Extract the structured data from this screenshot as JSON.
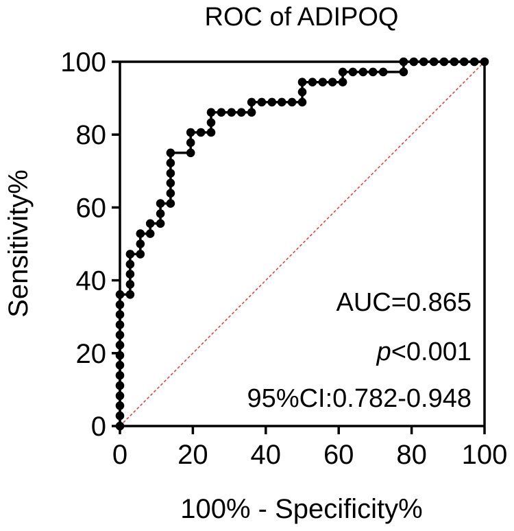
{
  "chart_data": {
    "type": "line",
    "title": "ROC of ADIPOQ",
    "xlabel": "100% - Specificity%",
    "ylabel": "Sensitivity%",
    "xlim": [
      0,
      100
    ],
    "ylim": [
      0,
      100
    ],
    "xticks": [
      "0",
      "20",
      "40",
      "60",
      "80",
      "100"
    ],
    "yticks": [
      "0",
      "20",
      "40",
      "60",
      "80",
      "100"
    ],
    "grid": false,
    "legend": "none",
    "colors": {
      "curve": "#000000",
      "reference": "#e0443e"
    },
    "annotations": {
      "auc": "AUC=0.865",
      "p_italic": "p",
      "p_rest": "<0.001",
      "ci": "95%CI:0.782-0.948"
    },
    "series": [
      {
        "kind": "roc-curve",
        "points": [
          [
            0,
            0
          ],
          [
            0,
            2.8
          ],
          [
            0,
            5.6
          ],
          [
            0,
            8.3
          ],
          [
            0,
            11.1
          ],
          [
            0,
            13.9
          ],
          [
            0,
            16.7
          ],
          [
            0,
            19.4
          ],
          [
            0,
            22.2
          ],
          [
            0,
            25
          ],
          [
            0,
            27.8
          ],
          [
            0,
            30.6
          ],
          [
            0,
            33.3
          ],
          [
            0,
            36.1
          ],
          [
            2.8,
            36.1
          ],
          [
            2.8,
            38.9
          ],
          [
            2.8,
            41.7
          ],
          [
            2.8,
            44.4
          ],
          [
            2.8,
            47.2
          ],
          [
            5.6,
            47.2
          ],
          [
            5.6,
            50
          ],
          [
            5.6,
            52.8
          ],
          [
            8.3,
            52.8
          ],
          [
            8.3,
            55.6
          ],
          [
            11.1,
            55.6
          ],
          [
            11.1,
            58.3
          ],
          [
            11.1,
            61.1
          ],
          [
            13.9,
            61.1
          ],
          [
            13.9,
            63.9
          ],
          [
            13.9,
            66.7
          ],
          [
            13.9,
            69.4
          ],
          [
            13.9,
            72.2
          ],
          [
            13.9,
            75
          ],
          [
            19.4,
            75
          ],
          [
            19.4,
            77.8
          ],
          [
            19.4,
            80.6
          ],
          [
            22.2,
            80.6
          ],
          [
            25,
            80.6
          ],
          [
            25,
            83.3
          ],
          [
            25,
            86.1
          ],
          [
            27.8,
            86.1
          ],
          [
            30.6,
            86.1
          ],
          [
            33.3,
            86.1
          ],
          [
            36.1,
            86.1
          ],
          [
            36.1,
            88.9
          ],
          [
            38.9,
            88.9
          ],
          [
            41.7,
            88.9
          ],
          [
            44.4,
            88.9
          ],
          [
            47.2,
            88.9
          ],
          [
            50,
            88.9
          ],
          [
            50,
            91.7
          ],
          [
            50,
            94.4
          ],
          [
            52.8,
            94.4
          ],
          [
            55.6,
            94.4
          ],
          [
            58.3,
            94.4
          ],
          [
            61.1,
            94.4
          ],
          [
            61.1,
            97.2
          ],
          [
            63.9,
            97.2
          ],
          [
            66.7,
            97.2
          ],
          [
            69.4,
            97.2
          ],
          [
            72.2,
            97.2
          ],
          [
            77.8,
            97.2
          ],
          [
            77.8,
            100
          ],
          [
            80.6,
            100
          ],
          [
            83.3,
            100
          ],
          [
            86.1,
            100
          ],
          [
            88.9,
            100
          ],
          [
            91.7,
            100
          ],
          [
            94.4,
            100
          ],
          [
            97.2,
            100
          ],
          [
            100,
            100
          ]
        ]
      },
      {
        "kind": "reference-line",
        "points": [
          [
            0,
            0
          ],
          [
            100,
            100
          ]
        ]
      }
    ]
  }
}
